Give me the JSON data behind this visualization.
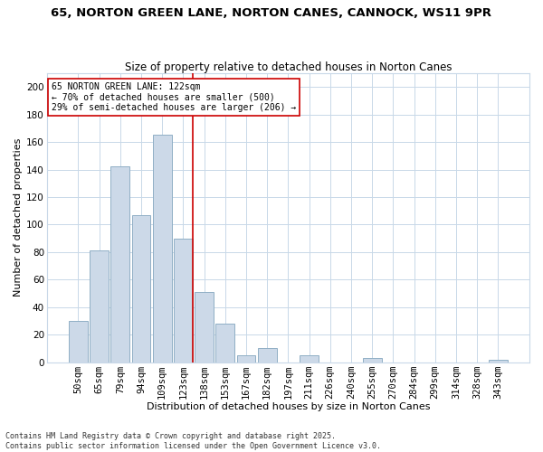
{
  "title": "65, NORTON GREEN LANE, NORTON CANES, CANNOCK, WS11 9PR",
  "subtitle": "Size of property relative to detached houses in Norton Canes",
  "xlabel": "Distribution of detached houses by size in Norton Canes",
  "ylabel": "Number of detached properties",
  "categories": [
    "50sqm",
    "65sqm",
    "79sqm",
    "94sqm",
    "109sqm",
    "123sqm",
    "138sqm",
    "153sqm",
    "167sqm",
    "182sqm",
    "197sqm",
    "211sqm",
    "226sqm",
    "240sqm",
    "255sqm",
    "270sqm",
    "284sqm",
    "299sqm",
    "314sqm",
    "328sqm",
    "343sqm"
  ],
  "values": [
    30,
    81,
    142,
    107,
    165,
    90,
    51,
    28,
    5,
    10,
    0,
    5,
    0,
    0,
    3,
    0,
    0,
    0,
    0,
    0,
    2
  ],
  "bar_color": "#ccd9e8",
  "bar_edge_color": "#90afc5",
  "vline_color": "#cc0000",
  "annotation_line1": "65 NORTON GREEN LANE: 122sqm",
  "annotation_line2": "← 70% of detached houses are smaller (500)",
  "annotation_line3": "29% of semi-detached houses are larger (206) →",
  "annotation_box_color": "#ffffff",
  "annotation_box_edge": "#cc0000",
  "ylim": [
    0,
    210
  ],
  "yticks": [
    0,
    20,
    40,
    60,
    80,
    100,
    120,
    140,
    160,
    180,
    200
  ],
  "background_color": "#ffffff",
  "grid_color": "#c8d8e8",
  "footer_line1": "Contains HM Land Registry data © Crown copyright and database right 2025.",
  "footer_line2": "Contains public sector information licensed under the Open Government Licence v3.0.",
  "title_fontsize": 9.5,
  "subtitle_fontsize": 8.5,
  "xlabel_fontsize": 8,
  "ylabel_fontsize": 8,
  "tick_fontsize": 7.5,
  "annotation_fontsize": 7,
  "footer_fontsize": 6
}
